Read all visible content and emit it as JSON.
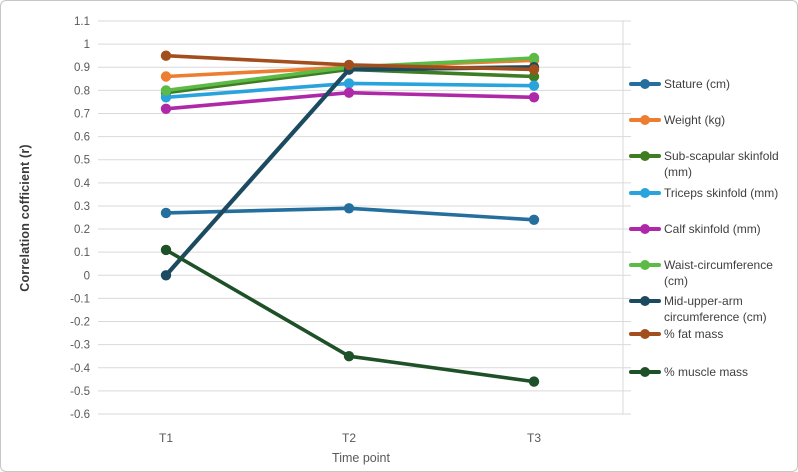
{
  "figure": {
    "background": "#FFFFFF",
    "border_color": "#C6C6C6",
    "gridline_color": "#D9D9D9",
    "tick_label_color": "#595959",
    "axis_title_color": "#3A3A3A"
  },
  "chart_data": {
    "type": "line",
    "title": "",
    "xlabel": "Time point",
    "ylabel": "Correlation cofficient (r)",
    "categories": [
      "T1",
      "T2",
      "T3"
    ],
    "ylim": [
      -0.6,
      1.1
    ],
    "grid": "horizontal",
    "legend_position": "right",
    "ytick_values": [
      1.1,
      1.0,
      0.9,
      0.8,
      0.7,
      0.6,
      0.5,
      0.4,
      0.3,
      0.2,
      0.1,
      0.0,
      -0.1,
      -0.2,
      -0.3,
      -0.4,
      -0.5,
      -0.6
    ],
    "ytick_labels": [
      "1.1",
      "1",
      "0.9",
      "0.8",
      "0.7",
      "0.6",
      "0.5",
      "0.4",
      "0.3",
      "0.2",
      "0.1",
      "0",
      "-0.1",
      "-0.2",
      "-0.3",
      "-0.4",
      "-0.5",
      "-0.6"
    ],
    "series": [
      {
        "name": "Stature (cm)",
        "legend_lines": [
          "Stature (cm)"
        ],
        "color": "#256F9E",
        "values": [
          0.27,
          0.29,
          0.24
        ]
      },
      {
        "name": "Weight (kg)",
        "legend_lines": [
          "Weight (kg)"
        ],
        "color": "#ED7D31",
        "values": [
          0.86,
          0.9,
          0.93
        ]
      },
      {
        "name": "Sub-scapular skinfold (mm)",
        "legend_lines": [
          "Sub-scapular skinfold",
          "(mm)"
        ],
        "color": "#3F7D23",
        "values": [
          0.79,
          0.89,
          0.86
        ]
      },
      {
        "name": "Triceps skinfold (mm)",
        "legend_lines": [
          "Triceps skinfold (mm)"
        ],
        "color": "#29A3DC",
        "values": [
          0.77,
          0.83,
          0.82
        ]
      },
      {
        "name": "Calf skinfold (mm)",
        "legend_lines": [
          "Calf skinfold (mm)"
        ],
        "color": "#AE28A7",
        "values": [
          0.72,
          0.79,
          0.77
        ]
      },
      {
        "name": "Waist-circumference (cm)",
        "legend_lines": [
          "Waist-circumference",
          "(cm)"
        ],
        "color": "#5CBB46",
        "values": [
          0.8,
          0.9,
          0.94
        ]
      },
      {
        "name": "Mid-upper-arm circumference (cm)",
        "legend_lines": [
          "Mid-upper-arm",
          "circumference (cm)"
        ],
        "color": "#1B4A61",
        "values": [
          0.0,
          0.89,
          0.9
        ]
      },
      {
        "name": "% fat mass",
        "legend_lines": [
          "% fat mass"
        ],
        "color": "#A34F1D",
        "values": [
          0.95,
          0.91,
          0.89
        ]
      },
      {
        "name": "% muscle mass",
        "legend_lines": [
          "% muscle mass"
        ],
        "color": "#1E5128",
        "values": [
          0.11,
          -0.35,
          -0.46
        ]
      }
    ]
  }
}
